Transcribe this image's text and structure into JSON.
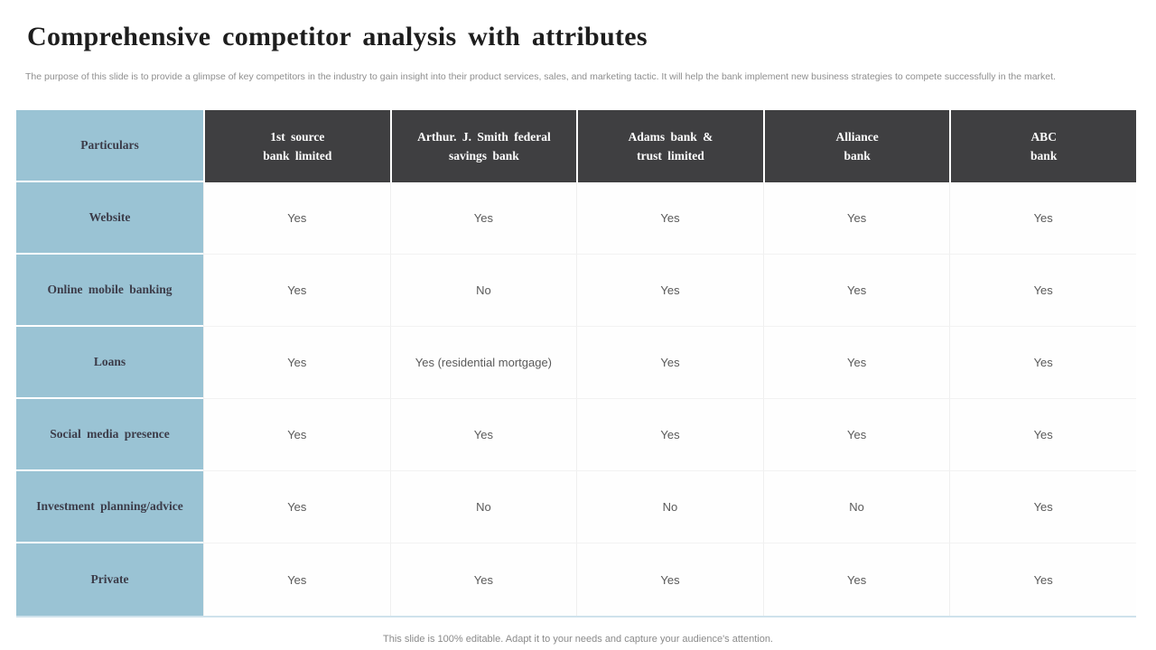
{
  "slide": {
    "title": "Comprehensive competitor analysis with attributes",
    "subtitle": "The purpose of this slide is to provide a glimpse of key competitors in the industry to gain insight into their product services, sales, and marketing tactic. It will help the bank implement new business strategies to compete successfully in the market.",
    "footer": "This slide is 100% editable. Adapt it to your needs and capture your audience's attention."
  },
  "colors": {
    "header_dark": "#3f3f41",
    "label_blue": "#9ac3d4",
    "title_text": "#1d1d1d",
    "cell_text": "#595959",
    "muted_text": "#8f8f8f",
    "table_bottom_line": "#cfe2ec"
  },
  "table": {
    "corner_header": "Particulars",
    "columns": [
      {
        "line1": "1st source",
        "line2": "bank limited"
      },
      {
        "line1": "Arthur. J. Smith federal",
        "line2": "savings bank"
      },
      {
        "line1": "Adams bank &",
        "line2": "trust limited"
      },
      {
        "line1": "Alliance",
        "line2": "bank"
      },
      {
        "line1": "ABC",
        "line2": "bank"
      }
    ],
    "rows": [
      {
        "label": "Website",
        "values": [
          "Yes",
          "Yes",
          "Yes",
          "Yes",
          "Yes"
        ]
      },
      {
        "label": "Online mobile banking",
        "values": [
          "Yes",
          "No",
          "Yes",
          "Yes",
          "Yes"
        ]
      },
      {
        "label": "Loans",
        "values": [
          "Yes",
          "Yes (residential mortgage)",
          "Yes",
          "Yes",
          "Yes"
        ]
      },
      {
        "label": "Social media presence",
        "values": [
          "Yes",
          "Yes",
          "Yes",
          "Yes",
          "Yes"
        ]
      },
      {
        "label": "Investment planning/advice",
        "values": [
          "Yes",
          "No",
          "No",
          "No",
          "Yes"
        ]
      },
      {
        "label": "Private",
        "values": [
          "Yes",
          "Yes",
          "Yes",
          "Yes",
          "Yes"
        ]
      }
    ]
  }
}
